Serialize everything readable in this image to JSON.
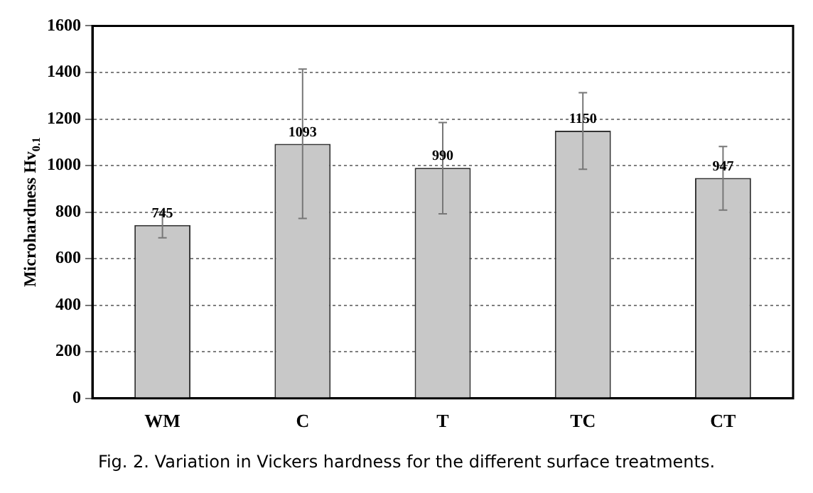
{
  "chart_data": {
    "type": "bar",
    "ylabel": "Microhardness Hv$_{0.1}$",
    "categories": [
      "WM",
      "C",
      "T",
      "TC",
      "CT"
    ],
    "values": [
      745,
      1093,
      990,
      1150,
      947
    ],
    "errors": [
      [
        690,
        800
      ],
      [
        773,
        1414
      ],
      [
        793,
        1185
      ],
      [
        984,
        1313
      ],
      [
        809,
        1082
      ]
    ],
    "color": "#c8c8c8",
    "data_labels": true,
    "ylim": [
      0,
      1600
    ],
    "yticks": [
      0,
      200,
      400,
      600,
      800,
      1000,
      1200,
      1400,
      1600
    ],
    "grid": "y",
    "annotations": [
      "Fig. 2. Variation in Vickers hardness for the different surface treatments."
    ]
  }
}
